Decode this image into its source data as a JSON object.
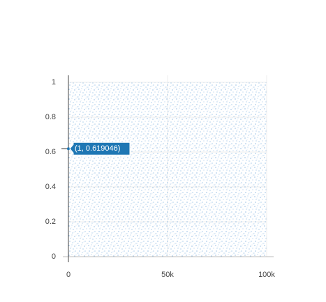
{
  "chart_data": {
    "type": "scatter",
    "x": [
      1
    ],
    "values": [
      0.619046
    ],
    "color": "#1f77b4",
    "hover_label": "(1, 0.619046)",
    "xlim": [
      0,
      100000
    ],
    "xticks": [
      0,
      {
        "value": 50000,
        "label": "50k"
      },
      {
        "value": 100000,
        "label": "100k"
      }
    ],
    "ylim": [
      0,
      1
    ],
    "yticks": [
      0,
      {
        "value": 0.2,
        "label": "0.2"
      },
      {
        "value": 0.4,
        "label": "0.4"
      },
      {
        "value": 0.6,
        "label": "0.6"
      },
      {
        "value": 0.8,
        "label": "0.8"
      },
      1
    ],
    "grid": true
  }
}
